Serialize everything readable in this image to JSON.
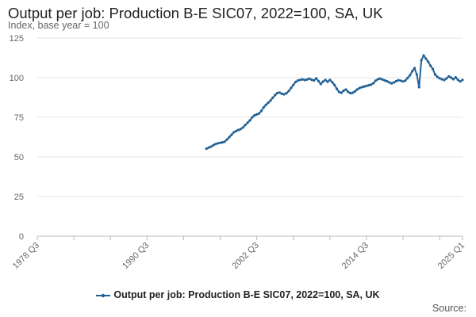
{
  "chart_data": {
    "type": "line",
    "title": "Output per job: Production B-E SIC07, 2022=100, SA, UK",
    "ylabel": "Index, base year = 100",
    "xlabel": "",
    "source_label": "Source:",
    "legend_position": "bottom",
    "grid": true,
    "ylim": [
      0,
      125
    ],
    "yticks": [
      "0",
      "25",
      "50",
      "75",
      "100",
      "125"
    ],
    "x_axis": {
      "start": "1978 Q3",
      "end": "2025 Q1"
    },
    "xtick_labels": [
      "1978 Q3",
      "1990 Q3",
      "2002 Q3",
      "2014 Q3",
      "2025 Q1"
    ],
    "colors": {
      "series": "#206095",
      "grid": "#e6e6e6",
      "axis": "#bbbbbb"
    },
    "series": [
      {
        "name": "Output per job: Production B-E SIC07, 2022=100, SA, UK",
        "points": [
          [
            "1997 Q1",
            55.2
          ],
          [
            "1997 Q2",
            55.9
          ],
          [
            "1997 Q3",
            56.5
          ],
          [
            "1997 Q4",
            57.4
          ],
          [
            "1998 Q1",
            58.1
          ],
          [
            "1998 Q2",
            58.6
          ],
          [
            "1998 Q3",
            58.9
          ],
          [
            "1998 Q4",
            59.2
          ],
          [
            "1999 Q1",
            59.6
          ],
          [
            "1999 Q2",
            61.0
          ],
          [
            "1999 Q3",
            62.5
          ],
          [
            "1999 Q4",
            64.0
          ],
          [
            "2000 Q1",
            65.6
          ],
          [
            "2000 Q2",
            66.4
          ],
          [
            "2000 Q3",
            67.0
          ],
          [
            "2000 Q4",
            67.6
          ],
          [
            "2001 Q1",
            68.6
          ],
          [
            "2001 Q2",
            70.2
          ],
          [
            "2001 Q3",
            71.6
          ],
          [
            "2001 Q4",
            73.0
          ],
          [
            "2002 Q1",
            75.0
          ],
          [
            "2002 Q2",
            76.2
          ],
          [
            "2002 Q3",
            76.8
          ],
          [
            "2002 Q4",
            77.4
          ],
          [
            "2003 Q1",
            79.0
          ],
          [
            "2003 Q2",
            81.2
          ],
          [
            "2003 Q3",
            82.8
          ],
          [
            "2003 Q4",
            84.2
          ],
          [
            "2004 Q1",
            85.5
          ],
          [
            "2004 Q2",
            87.3
          ],
          [
            "2004 Q3",
            89.0
          ],
          [
            "2004 Q4",
            90.3
          ],
          [
            "2005 Q1",
            90.6
          ],
          [
            "2005 Q2",
            89.8
          ],
          [
            "2005 Q3",
            89.5
          ],
          [
            "2005 Q4",
            90.2
          ],
          [
            "2006 Q1",
            91.6
          ],
          [
            "2006 Q2",
            93.5
          ],
          [
            "2006 Q3",
            95.4
          ],
          [
            "2006 Q4",
            97.3
          ],
          [
            "2007 Q1",
            98.2
          ],
          [
            "2007 Q2",
            98.6
          ],
          [
            "2007 Q3",
            98.9
          ],
          [
            "2007 Q4",
            98.5
          ],
          [
            "2008 Q1",
            98.8
          ],
          [
            "2008 Q2",
            99.4
          ],
          [
            "2008 Q3",
            98.7
          ],
          [
            "2008 Q4",
            98.2
          ],
          [
            "2009 Q1",
            99.6
          ],
          [
            "2009 Q2",
            97.8
          ],
          [
            "2009 Q3",
            96.0
          ],
          [
            "2009 Q4",
            97.5
          ],
          [
            "2010 Q1",
            98.6
          ],
          [
            "2010 Q2",
            97.4
          ],
          [
            "2010 Q3",
            98.6
          ],
          [
            "2010 Q4",
            97.2
          ],
          [
            "2011 Q1",
            95.4
          ],
          [
            "2011 Q2",
            93.0
          ],
          [
            "2011 Q3",
            91.0
          ],
          [
            "2011 Q4",
            90.5
          ],
          [
            "2012 Q1",
            91.8
          ],
          [
            "2012 Q2",
            92.5
          ],
          [
            "2012 Q3",
            91.0
          ],
          [
            "2012 Q4",
            90.2
          ],
          [
            "2013 Q1",
            90.5
          ],
          [
            "2013 Q2",
            91.4
          ],
          [
            "2013 Q3",
            92.6
          ],
          [
            "2013 Q4",
            93.5
          ],
          [
            "2014 Q1",
            94.0
          ],
          [
            "2014 Q2",
            94.4
          ],
          [
            "2014 Q3",
            94.8
          ],
          [
            "2014 Q4",
            95.2
          ],
          [
            "2015 Q1",
            95.6
          ],
          [
            "2015 Q2",
            96.5
          ],
          [
            "2015 Q3",
            98.1
          ],
          [
            "2015 Q4",
            99.0
          ],
          [
            "2016 Q1",
            99.4
          ],
          [
            "2016 Q2",
            98.8
          ],
          [
            "2016 Q3",
            98.3
          ],
          [
            "2016 Q4",
            97.7
          ],
          [
            "2017 Q1",
            97.0
          ],
          [
            "2017 Q2",
            96.4
          ],
          [
            "2017 Q3",
            97.0
          ],
          [
            "2017 Q4",
            97.8
          ],
          [
            "2018 Q1",
            98.4
          ],
          [
            "2018 Q2",
            98.1
          ],
          [
            "2018 Q3",
            97.6
          ],
          [
            "2018 Q4",
            98.2
          ],
          [
            "2019 Q1",
            99.8
          ],
          [
            "2019 Q2",
            101.5
          ],
          [
            "2019 Q3",
            104.0
          ],
          [
            "2019 Q4",
            106.0
          ],
          [
            "2020 Q1",
            102.0
          ],
          [
            "2020 Q2",
            94.0
          ],
          [
            "2020 Q3",
            111.0
          ],
          [
            "2020 Q4",
            114.0
          ],
          [
            "2021 Q1",
            112.0
          ],
          [
            "2021 Q2",
            110.0
          ],
          [
            "2021 Q3",
            107.5
          ],
          [
            "2021 Q4",
            105.5
          ],
          [
            "2022 Q1",
            102.0
          ],
          [
            "2022 Q2",
            100.5
          ],
          [
            "2022 Q3",
            99.6
          ],
          [
            "2022 Q4",
            99.0
          ],
          [
            "2023 Q1",
            98.5
          ],
          [
            "2023 Q2",
            99.5
          ],
          [
            "2023 Q3",
            100.8
          ],
          [
            "2023 Q4",
            100.0
          ],
          [
            "2024 Q1",
            99.0
          ],
          [
            "2024 Q2",
            100.2
          ],
          [
            "2024 Q3",
            98.6
          ],
          [
            "2024 Q4",
            97.6
          ],
          [
            "2025 Q1",
            98.6
          ]
        ]
      }
    ]
  }
}
